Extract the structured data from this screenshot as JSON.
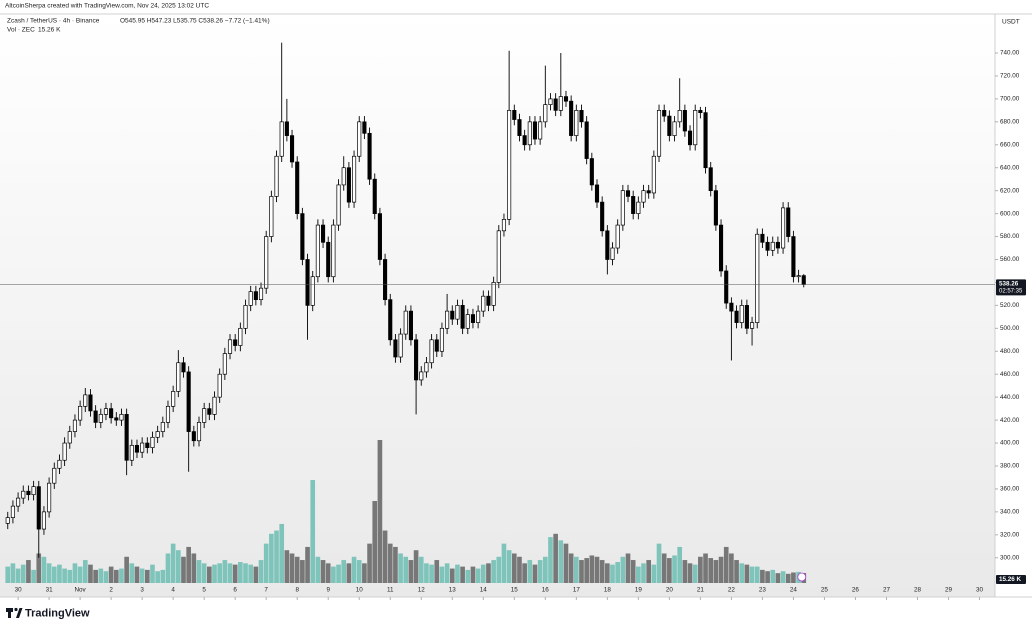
{
  "chart_data": {
    "type": "candlestick",
    "credit": "AltcoinSherpa created with TradingView.com, Nov 24, 2025 13:02 UTC",
    "symbol": "Zcash / TetherUS · 4h · Binance",
    "ohlc_text": "O545.95 H547.23 L535.75 C538.26 −7.72 (−1.41%)",
    "volume_title": "Vol · ZEC",
    "volume_text": "15.26 K",
    "currency": "USDT",
    "countdown": "02:57:35",
    "logo": "TradingView",
    "open": [
      330,
      335,
      345,
      352,
      358,
      355,
      362,
      325,
      340,
      365,
      378,
      385,
      400,
      410,
      420,
      432,
      442,
      428,
      418,
      425,
      430,
      422,
      420,
      425,
      385,
      398,
      392,
      400,
      396,
      405,
      410,
      418,
      432,
      445,
      470,
      462,
      410,
      402,
      418,
      430,
      425,
      440,
      460,
      478,
      490,
      485,
      500,
      520,
      532,
      525,
      535,
      580,
      615,
      650,
      680,
      668,
      645,
      600,
      560,
      520,
      545,
      590,
      575,
      545,
      590,
      625,
      640,
      610,
      650,
      680,
      670,
      630,
      600,
      560,
      525,
      490,
      475,
      495,
      515,
      490,
      455,
      462,
      470,
      490,
      480,
      500,
      515,
      508,
      520,
      500,
      512,
      505,
      515,
      528,
      520,
      540,
      585,
      595,
      690,
      682,
      668,
      660,
      680,
      665,
      680,
      695,
      700,
      690,
      702,
      698,
      668,
      690,
      680,
      648,
      625,
      610,
      585,
      560,
      570,
      590,
      620,
      615,
      600,
      610,
      620,
      618,
      650,
      690,
      685,
      668,
      680,
      690,
      672,
      660,
      690,
      688,
      640,
      620,
      590,
      550,
      522,
      515,
      505,
      520,
      500,
      505,
      582,
      575,
      568,
      575,
      570,
      605,
      580,
      545,
      545.95
    ],
    "high": [
      340,
      350,
      357,
      363,
      363,
      367,
      367,
      345,
      370,
      383,
      390,
      405,
      415,
      425,
      437,
      448,
      447,
      433,
      430,
      435,
      435,
      427,
      430,
      430,
      403,
      403,
      405,
      405,
      410,
      415,
      423,
      437,
      450,
      481,
      475,
      467,
      415,
      423,
      435,
      435,
      445,
      465,
      483,
      495,
      495,
      505,
      525,
      537,
      537,
      540,
      585,
      620,
      655,
      749,
      700,
      673,
      650,
      605,
      565,
      550,
      595,
      595,
      580,
      595,
      630,
      650,
      645,
      655,
      685,
      685,
      675,
      635,
      605,
      565,
      530,
      495,
      500,
      520,
      520,
      495,
      467,
      475,
      495,
      495,
      505,
      530,
      520,
      525,
      525,
      517,
      517,
      520,
      533,
      533,
      545,
      590,
      600,
      742,
      695,
      687,
      673,
      685,
      685,
      685,
      729,
      705,
      705,
      740,
      707,
      703,
      695,
      695,
      685,
      653,
      630,
      615,
      590,
      575,
      595,
      625,
      625,
      620,
      615,
      625,
      625,
      655,
      695,
      695,
      690,
      685,
      718,
      695,
      677,
      695,
      693,
      693,
      645,
      625,
      595,
      555,
      527,
      520,
      525,
      525,
      510,
      587,
      587,
      580,
      580,
      580,
      610,
      610,
      585,
      551,
      547.23
    ],
    "low": [
      325,
      330,
      340,
      347,
      350,
      350,
      300,
      320,
      335,
      360,
      373,
      380,
      395,
      405,
      415,
      427,
      423,
      413,
      413,
      420,
      417,
      415,
      415,
      372,
      380,
      387,
      387,
      391,
      391,
      400,
      405,
      413,
      427,
      440,
      457,
      375,
      397,
      397,
      413,
      420,
      420,
      435,
      455,
      473,
      480,
      480,
      495,
      515,
      520,
      520,
      530,
      575,
      610,
      645,
      663,
      640,
      595,
      555,
      490,
      515,
      540,
      570,
      540,
      540,
      585,
      620,
      605,
      605,
      645,
      665,
      625,
      595,
      555,
      520,
      485,
      470,
      470,
      490,
      485,
      425,
      450,
      457,
      465,
      475,
      475,
      495,
      503,
      503,
      495,
      495,
      500,
      500,
      510,
      515,
      515,
      535,
      580,
      590,
      677,
      663,
      655,
      655,
      660,
      660,
      675,
      690,
      685,
      685,
      693,
      663,
      663,
      675,
      643,
      620,
      605,
      580,
      547,
      555,
      565,
      585,
      610,
      595,
      595,
      605,
      613,
      613,
      645,
      680,
      663,
      663,
      675,
      667,
      655,
      655,
      683,
      635,
      615,
      585,
      545,
      517,
      472,
      500,
      500,
      495,
      485,
      500,
      570,
      563,
      563,
      565,
      565,
      575,
      540,
      540,
      535.75
    ],
    "close": [
      335,
      345,
      352,
      358,
      355,
      362,
      325,
      340,
      365,
      378,
      385,
      400,
      410,
      420,
      432,
      442,
      428,
      418,
      425,
      430,
      422,
      420,
      425,
      385,
      398,
      392,
      400,
      396,
      405,
      410,
      418,
      432,
      445,
      470,
      462,
      410,
      402,
      418,
      430,
      425,
      440,
      460,
      478,
      490,
      485,
      500,
      520,
      532,
      525,
      535,
      580,
      615,
      650,
      680,
      668,
      645,
      600,
      560,
      520,
      545,
      590,
      575,
      545,
      590,
      625,
      640,
      610,
      650,
      680,
      670,
      630,
      600,
      560,
      525,
      490,
      475,
      495,
      515,
      490,
      455,
      462,
      470,
      490,
      480,
      500,
      515,
      508,
      520,
      500,
      512,
      505,
      515,
      528,
      520,
      540,
      585,
      595,
      690,
      682,
      668,
      660,
      680,
      665,
      680,
      695,
      700,
      690,
      702,
      698,
      668,
      690,
      680,
      648,
      625,
      610,
      585,
      560,
      570,
      590,
      620,
      615,
      600,
      610,
      620,
      618,
      650,
      690,
      685,
      668,
      680,
      690,
      672,
      660,
      690,
      688,
      640,
      620,
      590,
      550,
      522,
      515,
      505,
      520,
      500,
      505,
      582,
      575,
      568,
      575,
      570,
      605,
      580,
      545,
      545.95,
      538.26
    ],
    "volume": [
      25,
      30,
      22,
      28,
      35,
      20,
      45,
      40,
      30,
      25,
      28,
      22,
      20,
      30,
      25,
      35,
      28,
      20,
      22,
      18,
      25,
      20,
      22,
      40,
      30,
      25,
      22,
      20,
      28,
      18,
      20,
      45,
      60,
      50,
      40,
      55,
      45,
      35,
      30,
      25,
      28,
      30,
      35,
      30,
      28,
      32,
      30,
      28,
      25,
      35,
      60,
      75,
      80,
      90,
      50,
      45,
      40,
      35,
      55,
      157,
      40,
      35,
      30,
      25,
      28,
      35,
      30,
      40,
      35,
      30,
      60,
      125,
      218,
      80,
      60,
      55,
      45,
      40,
      35,
      50,
      40,
      30,
      28,
      35,
      25,
      30,
      22,
      28,
      25,
      20,
      25,
      22,
      28,
      30,
      35,
      40,
      60,
      50,
      45,
      40,
      30,
      35,
      28,
      35,
      40,
      70,
      75,
      65,
      60,
      45,
      40,
      35,
      38,
      42,
      40,
      35,
      30,
      28,
      32,
      40,
      45,
      35,
      25,
      30,
      35,
      28,
      60,
      45,
      38,
      42,
      55,
      35,
      30,
      28,
      40,
      45,
      38,
      35,
      40,
      55,
      45,
      35,
      30,
      28,
      25,
      25,
      20,
      18,
      20,
      15,
      18,
      14,
      16,
      17,
      15.26
    ],
    "up_color": "#ffffff",
    "down_color": "#000000",
    "volume_up_color": "#7fc4ba",
    "volume_down_color": "#777777",
    "xlim": [
      -1.5,
      191
    ],
    "ylim": [
      278,
      774
    ],
    "xticks": [
      {
        "value": 2,
        "label": "30"
      },
      {
        "value": 8,
        "label": "31"
      },
      {
        "value": 14,
        "label": "Nov"
      },
      {
        "value": 20,
        "label": "2"
      },
      {
        "value": 26,
        "label": "3"
      },
      {
        "value": 32,
        "label": "4"
      },
      {
        "value": 38,
        "label": "5"
      },
      {
        "value": 44,
        "label": "6"
      },
      {
        "value": 50,
        "label": "7"
      },
      {
        "value": 56,
        "label": "8"
      },
      {
        "value": 62,
        "label": "9"
      },
      {
        "value": 68,
        "label": "10"
      },
      {
        "value": 74,
        "label": "11"
      },
      {
        "value": 80,
        "label": "12"
      },
      {
        "value": 86,
        "label": "13"
      },
      {
        "value": 92,
        "label": "14"
      },
      {
        "value": 98,
        "label": "15"
      },
      {
        "value": 104,
        "label": "16"
      },
      {
        "value": 110,
        "label": "17"
      },
      {
        "value": 116,
        "label": "18"
      },
      {
        "value": 122,
        "label": "19"
      },
      {
        "value": 128,
        "label": "20"
      },
      {
        "value": 134,
        "label": "21"
      },
      {
        "value": 140,
        "label": "22"
      },
      {
        "value": 146,
        "label": "23"
      },
      {
        "value": 152,
        "label": "24"
      },
      {
        "value": 158,
        "label": "25"
      },
      {
        "value": 164,
        "label": "26"
      },
      {
        "value": 170,
        "label": "27"
      },
      {
        "value": 176,
        "label": "28"
      },
      {
        "value": 182,
        "label": "29"
      },
      {
        "value": 188,
        "label": "30"
      }
    ],
    "yticks": [
      {
        "value": 300,
        "label": "300.00"
      },
      {
        "value": 320,
        "label": "320.00"
      },
      {
        "value": 340,
        "label": "340.00"
      },
      {
        "value": 360,
        "label": "360.00"
      },
      {
        "value": 380,
        "label": "380.00"
      },
      {
        "value": 400,
        "label": "400.00"
      },
      {
        "value": 420,
        "label": "420.00"
      },
      {
        "value": 440,
        "label": "440.00"
      },
      {
        "value": 460,
        "label": "460.00"
      },
      {
        "value": 480,
        "label": "480.00"
      },
      {
        "value": 500,
        "label": "500.00"
      },
      {
        "value": 520,
        "label": "520.00"
      },
      {
        "value": 540,
        "label": "540.00"
      },
      {
        "value": 560,
        "label": "560.00"
      },
      {
        "value": 580,
        "label": "580.00"
      },
      {
        "value": 600,
        "label": "600.00"
      },
      {
        "value": 620,
        "label": "620.00"
      },
      {
        "value": 640,
        "label": "640.00"
      },
      {
        "value": 660,
        "label": "660.00"
      },
      {
        "value": 680,
        "label": "680.00"
      },
      {
        "value": 700,
        "label": "700.00"
      },
      {
        "value": 720,
        "label": "720.00"
      },
      {
        "value": 740,
        "label": "740.00"
      }
    ],
    "grid": false
  }
}
